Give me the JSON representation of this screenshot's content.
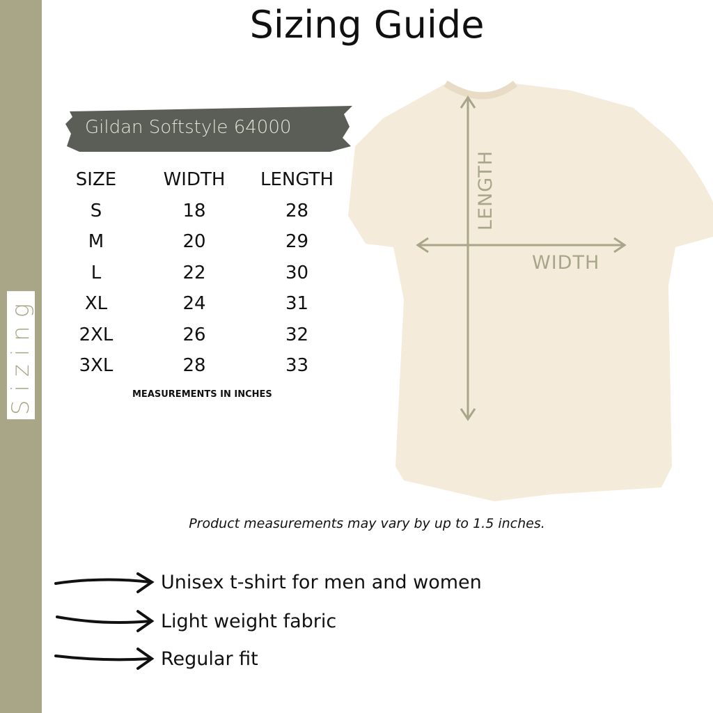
{
  "title": "Sizing Guide",
  "sidebar": {
    "label": "Sizing",
    "color": "#a9a688"
  },
  "brand": {
    "label": "Gildan Softstyle 64000",
    "brush_color": "#5b5e56"
  },
  "table": {
    "headers": [
      "SIZE",
      "WIDTH",
      "LENGTH"
    ],
    "rows": [
      [
        "S",
        "18",
        "28"
      ],
      [
        "M",
        "20",
        "29"
      ],
      [
        "L",
        "22",
        "30"
      ],
      [
        "XL",
        "24",
        "31"
      ],
      [
        "2XL",
        "26",
        "32"
      ],
      [
        "3XL",
        "28",
        "33"
      ]
    ]
  },
  "units_note": "MEASUREMENTS IN INCHES",
  "diagram": {
    "length_label": "LENGTH",
    "width_label": "WIDTH",
    "arrow_color": "#a8a688",
    "shirt_color": "#f4ebdb"
  },
  "disclaimer": "Product measurements may vary by up to 1.5 inches.",
  "features": [
    "Unisex t-shirt for men and women",
    "Light weight fabric",
    "Regular fit"
  ]
}
